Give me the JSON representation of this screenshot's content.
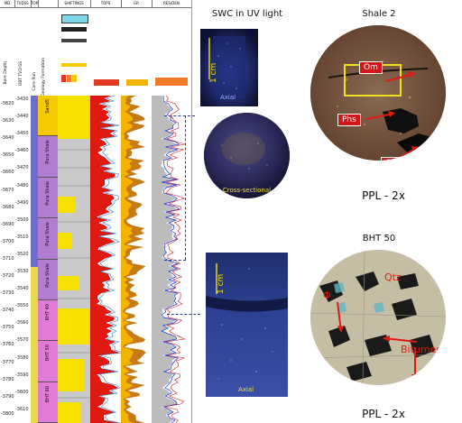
{
  "log": {
    "track_headers": [
      "MD",
      "TVDSS",
      "TOPS",
      "SHIFTINGS",
      "TOPS",
      "GR",
      "RES/DEN"
    ],
    "header_labels": [
      "Bore Depth",
      "OBT TVD SS",
      "Core Run",
      "Geology Formation"
    ],
    "depths_md": [
      "3620",
      "3630",
      "3640",
      "3650",
      "3660",
      "3670",
      "3680",
      "3690",
      "3700",
      "3710",
      "3720",
      "3730",
      "3740",
      "3750",
      "3760",
      "3770",
      "3780",
      "3790",
      "3800"
    ],
    "depths_tvd": [
      "3430",
      "3440",
      "3450",
      "3460",
      "3470",
      "3480",
      "3490",
      "3500",
      "3510",
      "3520",
      "3530",
      "3540",
      "3550",
      "3560",
      "3570",
      "3580",
      "3590",
      "3600",
      "3610"
    ],
    "zones": [
      {
        "label": "Sand5",
        "color": "#f5c900"
      },
      {
        "label": "Pura Shale",
        "color": "#b27dd1"
      },
      {
        "label": "Pura Shale",
        "color": "#b27dd1"
      },
      {
        "label": "Pura Shale",
        "color": "#b27dd1"
      },
      {
        "label": "Pura Shale",
        "color": "#b27dd1"
      },
      {
        "label": "BHT 40",
        "color": "#e17bd5"
      },
      {
        "label": "BHT 50",
        "color": "#e17bd5"
      },
      {
        "label": "BHT 60",
        "color": "#e17bd5"
      }
    ]
  },
  "swc": {
    "title": "SWC in UV light",
    "scale_label": "1 cm",
    "axial_label": "Axial",
    "cross_label": "Cross-sectional",
    "axial2_label": "Axial",
    "scale2_label": "1 cm"
  },
  "shale": {
    "title": "Shale 2",
    "labels": {
      "om1": "Om",
      "phs": "Phs",
      "om2": "Om"
    },
    "caption": "PPL - 2x"
  },
  "bht": {
    "title": "BHT 50",
    "labels": {
      "qtz": "Qtz",
      "phi": "Φ",
      "bitumen": "Bitumen"
    },
    "caption": "PPL - 2x"
  },
  "colors": {
    "dash": "#2a3c9a",
    "label_red": "#d01818",
    "label_yellow": "#f0e020",
    "uv_bg": "#151c45"
  }
}
